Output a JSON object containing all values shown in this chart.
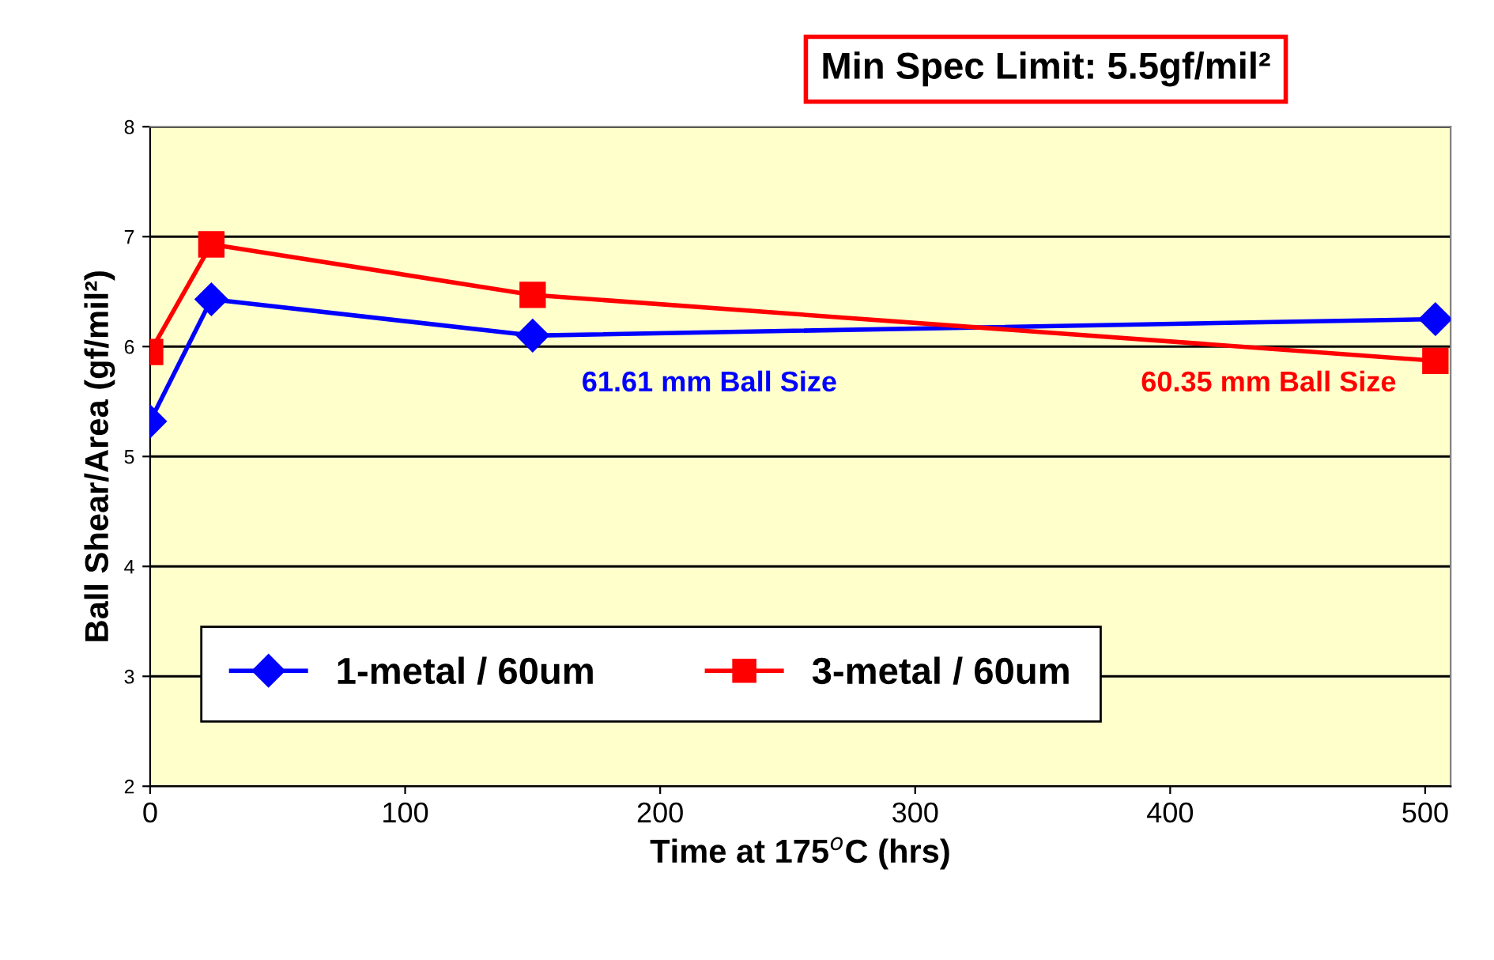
{
  "chart_data": {
    "type": "line",
    "xlabel": "Time at 175$^{o}$C (hrs)",
    "ylabel": "Ball Shear/Area (gf/mil²)",
    "x": [
      0,
      24,
      150,
      504
    ],
    "series": [
      {
        "name": "1-metal / 60um",
        "color": "#0000ff",
        "marker": "diamond",
        "values": [
          5.32,
          6.43,
          6.1,
          6.25
        ]
      },
      {
        "name": "3-metal / 60um",
        "color": "#ff0000",
        "marker": "square",
        "values": [
          5.95,
          6.93,
          6.47,
          5.87
        ]
      }
    ],
    "annotations": [
      "Min Spec Limit: 5.5gf/mil²",
      "61.61 mm Ball Size",
      "60.35 mm Ball Size"
    ],
    "xlim": [
      0,
      510
    ],
    "xticks": [
      0,
      100,
      200,
      300,
      400,
      500
    ],
    "ylim": [
      2,
      8
    ],
    "yticks": [
      2,
      3,
      4,
      5,
      6,
      7,
      8
    ],
    "grid": "y",
    "legend": "bottom left",
    "line_style": "solid"
  }
}
